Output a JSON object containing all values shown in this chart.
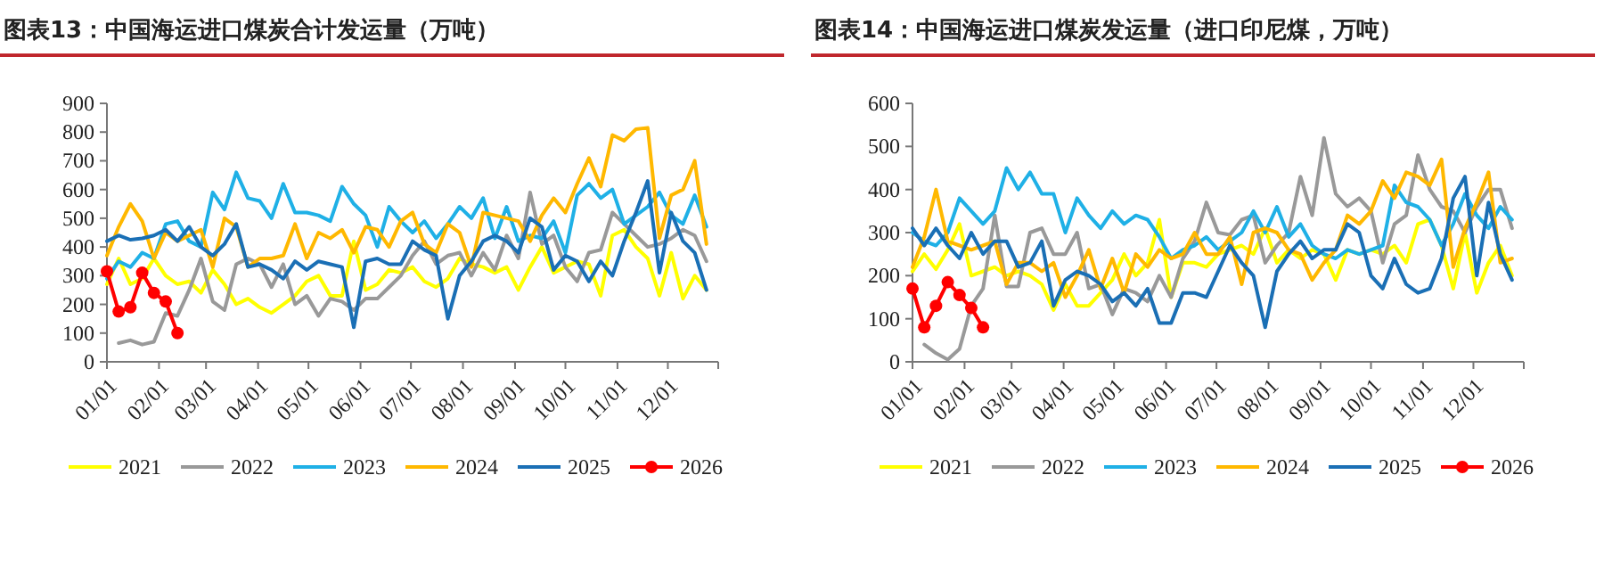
{
  "chart_data": [
    {
      "type": "line",
      "title": "图表13：中国海运进口煤炭合计发运量（万吨）",
      "legend": "bottom",
      "grid": false,
      "x": [
        "--01-01",
        "--01-08",
        "--01-15",
        "--01-22",
        "--01-29",
        "--02-05",
        "--02-12",
        "--02-19",
        "--02-26",
        "--03-05",
        "--03-12",
        "--03-19",
        "--03-26",
        "--04-02",
        "--04-09",
        "--04-16",
        "--04-23",
        "--04-30",
        "--05-07",
        "--05-14",
        "--05-21",
        "--05-28",
        "--06-04",
        "--06-11",
        "--06-18",
        "--06-25",
        "--07-02",
        "--07-09",
        "--07-16",
        "--07-23",
        "--07-30",
        "--08-06",
        "--08-13",
        "--08-20",
        "--08-27",
        "--09-03",
        "--09-10",
        "--09-17",
        "--09-24",
        "--10-01",
        "--10-08",
        "--10-15",
        "--10-22",
        "--10-29",
        "--11-05",
        "--11-12",
        "--11-19",
        "--11-26",
        "--12-03",
        "--12-10",
        "--12-17",
        "--12-24"
      ],
      "xlim": [
        "--01-01",
        "--12-31"
      ],
      "xticks": [
        {
          "value": "--01-01",
          "label": "01/01"
        },
        {
          "value": "--02-01",
          "label": "02/01"
        },
        {
          "value": "--03-01",
          "label": "03/01"
        },
        {
          "value": "--04-01",
          "label": "04/01"
        },
        {
          "value": "--05-01",
          "label": "05/01"
        },
        {
          "value": "--06-01",
          "label": "06/01"
        },
        {
          "value": "--07-01",
          "label": "07/01"
        },
        {
          "value": "--08-01",
          "label": "08/01"
        },
        {
          "value": "--09-01",
          "label": "09/01"
        },
        {
          "value": "--10-01",
          "label": "10/01"
        },
        {
          "value": "--11-01",
          "label": "11/01"
        },
        {
          "value": "--12-01",
          "label": "12/01"
        }
      ],
      "ylim": [
        0,
        900
      ],
      "yticks": [
        0,
        100,
        200,
        300,
        400,
        500,
        600,
        700,
        800,
        900
      ],
      "series": [
        {
          "name": "2021",
          "color": "#ffff00",
          "values": [
            270,
            360,
            270,
            290,
            360,
            300,
            270,
            280,
            240,
            320,
            270,
            200,
            220,
            190,
            170,
            200,
            230,
            280,
            300,
            230,
            230,
            420,
            250,
            270,
            320,
            310,
            330,
            280,
            260,
            290,
            360,
            340,
            330,
            310,
            330,
            250,
            330,
            400,
            310,
            330,
            350,
            340,
            230,
            440,
            460,
            400,
            360,
            230,
            380,
            220,
            300,
            250
          ]
        },
        {
          "name": "2022",
          "color": "#999999",
          "values": [
            null,
            65,
            75,
            60,
            70,
            170,
            160,
            250,
            360,
            210,
            180,
            340,
            360,
            340,
            260,
            340,
            200,
            230,
            160,
            220,
            210,
            180,
            220,
            220,
            260,
            300,
            370,
            420,
            340,
            370,
            380,
            300,
            380,
            320,
            440,
            360,
            590,
            410,
            440,
            330,
            280,
            380,
            390,
            520,
            480,
            440,
            400,
            410,
            430,
            460,
            440,
            350
          ]
        },
        {
          "name": "2023",
          "color": "#1fb0e6",
          "values": [
            290,
            350,
            330,
            380,
            360,
            480,
            490,
            420,
            400,
            590,
            530,
            660,
            570,
            560,
            500,
            620,
            520,
            520,
            510,
            490,
            610,
            550,
            510,
            400,
            540,
            490,
            450,
            490,
            430,
            480,
            540,
            500,
            570,
            430,
            540,
            420,
            440,
            430,
            490,
            380,
            580,
            620,
            570,
            600,
            480,
            510,
            540,
            590,
            510,
            480,
            580,
            470
          ]
        },
        {
          "name": "2024",
          "color": "#ffb800",
          "values": [
            370,
            470,
            550,
            490,
            360,
            450,
            420,
            440,
            460,
            330,
            500,
            470,
            330,
            360,
            360,
            370,
            480,
            360,
            450,
            430,
            460,
            380,
            470,
            460,
            400,
            490,
            520,
            410,
            380,
            480,
            450,
            330,
            520,
            510,
            500,
            490,
            420,
            510,
            570,
            520,
            620,
            710,
            610,
            790,
            770,
            810,
            815,
            430,
            580,
            600,
            700,
            410
          ]
        },
        {
          "name": "2025",
          "color": "#1a6fb5",
          "values": [
            420,
            440,
            425,
            430,
            440,
            460,
            420,
            470,
            400,
            370,
            410,
            480,
            330,
            340,
            320,
            290,
            350,
            320,
            350,
            340,
            330,
            120,
            350,
            360,
            340,
            340,
            420,
            390,
            370,
            150,
            300,
            350,
            420,
            440,
            420,
            380,
            500,
            470,
            320,
            370,
            350,
            280,
            350,
            300,
            420,
            520,
            630,
            310,
            520,
            420,
            380,
            250
          ]
        },
        {
          "name": "2026",
          "color": "#ff0000",
          "marker": "circle",
          "x": [
            "--01-01",
            "--01-08",
            "--01-15",
            "--01-22",
            "--01-29",
            "--02-05",
            "--02-12"
          ],
          "values": [
            315,
            175,
            190,
            310,
            240,
            210,
            100
          ]
        }
      ]
    },
    {
      "type": "line",
      "title": "图表14：中国海运进口煤炭发运量（进口印尼煤，万吨）",
      "legend": "bottom",
      "grid": false,
      "x": [
        "--01-01",
        "--01-08",
        "--01-15",
        "--01-22",
        "--01-29",
        "--02-05",
        "--02-12",
        "--02-19",
        "--02-26",
        "--03-05",
        "--03-12",
        "--03-19",
        "--03-26",
        "--04-02",
        "--04-09",
        "--04-16",
        "--04-23",
        "--04-30",
        "--05-07",
        "--05-14",
        "--05-21",
        "--05-28",
        "--06-04",
        "--06-11",
        "--06-18",
        "--06-25",
        "--07-02",
        "--07-09",
        "--07-16",
        "--07-23",
        "--07-30",
        "--08-06",
        "--08-13",
        "--08-20",
        "--08-27",
        "--09-03",
        "--09-10",
        "--09-17",
        "--09-24",
        "--10-01",
        "--10-08",
        "--10-15",
        "--10-22",
        "--10-29",
        "--11-05",
        "--11-12",
        "--11-19",
        "--11-26",
        "--12-03",
        "--12-10",
        "--12-17",
        "--12-24"
      ],
      "xlim": [
        "--01-01",
        "--12-31"
      ],
      "xticks": [
        {
          "value": "--01-01",
          "label": "01/01"
        },
        {
          "value": "--02-01",
          "label": "02/01"
        },
        {
          "value": "--03-01",
          "label": "03/01"
        },
        {
          "value": "--04-01",
          "label": "04/01"
        },
        {
          "value": "--05-01",
          "label": "05/01"
        },
        {
          "value": "--06-01",
          "label": "06/01"
        },
        {
          "value": "--07-01",
          "label": "07/01"
        },
        {
          "value": "--08-01",
          "label": "08/01"
        },
        {
          "value": "--09-01",
          "label": "09/01"
        },
        {
          "value": "--10-01",
          "label": "10/01"
        },
        {
          "value": "--11-01",
          "label": "11/01"
        },
        {
          "value": "--12-01",
          "label": "12/01"
        }
      ],
      "ylim": [
        0,
        600
      ],
      "yticks": [
        0,
        100,
        200,
        300,
        400,
        500,
        600
      ],
      "series": [
        {
          "name": "2021",
          "color": "#ffff00",
          "values": [
            210,
            250,
            215,
            260,
            320,
            200,
            210,
            220,
            200,
            210,
            200,
            180,
            120,
            180,
            130,
            130,
            160,
            190,
            250,
            200,
            230,
            330,
            150,
            230,
            230,
            220,
            250,
            260,
            270,
            250,
            310,
            230,
            260,
            240,
            260,
            250,
            190,
            260,
            250,
            260,
            250,
            270,
            230,
            320,
            330,
            270,
            170,
            300,
            160,
            230,
            270,
            200
          ]
        },
        {
          "name": "2022",
          "color": "#999999",
          "values": [
            null,
            40,
            20,
            5,
            30,
            130,
            170,
            340,
            175,
            175,
            300,
            310,
            250,
            250,
            300,
            170,
            180,
            110,
            170,
            160,
            140,
            200,
            150,
            240,
            280,
            370,
            300,
            295,
            330,
            340,
            230,
            270,
            300,
            430,
            340,
            520,
            390,
            360,
            380,
            350,
            230,
            320,
            340,
            480,
            400,
            360,
            350,
            300,
            360,
            400,
            400,
            310
          ]
        },
        {
          "name": "2023",
          "color": "#1fb0e6",
          "values": [
            300,
            280,
            270,
            300,
            380,
            350,
            320,
            350,
            450,
            400,
            440,
            390,
            390,
            300,
            380,
            340,
            310,
            350,
            320,
            340,
            330,
            290,
            240,
            260,
            270,
            290,
            260,
            280,
            300,
            350,
            300,
            360,
            290,
            320,
            270,
            250,
            240,
            260,
            250,
            260,
            270,
            410,
            370,
            360,
            330,
            270,
            320,
            390,
            340,
            310,
            360,
            330
          ]
        },
        {
          "name": "2024",
          "color": "#ffb800",
          "values": [
            220,
            290,
            400,
            280,
            270,
            260,
            270,
            280,
            180,
            230,
            230,
            210,
            230,
            150,
            200,
            260,
            170,
            240,
            160,
            250,
            220,
            260,
            240,
            250,
            300,
            250,
            250,
            290,
            180,
            300,
            310,
            300,
            260,
            250,
            190,
            230,
            260,
            340,
            320,
            350,
            420,
            380,
            440,
            430,
            410,
            470,
            220,
            310,
            370,
            440,
            230,
            240
          ]
        },
        {
          "name": "2025",
          "color": "#1a6fb5",
          "values": [
            310,
            270,
            310,
            270,
            240,
            300,
            250,
            280,
            280,
            220,
            230,
            280,
            130,
            190,
            210,
            200,
            180,
            140,
            160,
            130,
            170,
            90,
            90,
            160,
            160,
            150,
            210,
            270,
            230,
            200,
            80,
            210,
            250,
            280,
            240,
            260,
            260,
            320,
            300,
            200,
            170,
            240,
            180,
            160,
            170,
            240,
            380,
            430,
            200,
            370,
            250,
            190
          ]
        },
        {
          "name": "2026",
          "color": "#ff0000",
          "marker": "circle",
          "x": [
            "--01-01",
            "--01-08",
            "--01-15",
            "--01-22",
            "--01-29",
            "--02-05",
            "--02-12"
          ],
          "values": [
            170,
            80,
            130,
            185,
            155,
            125,
            80
          ]
        }
      ]
    }
  ]
}
